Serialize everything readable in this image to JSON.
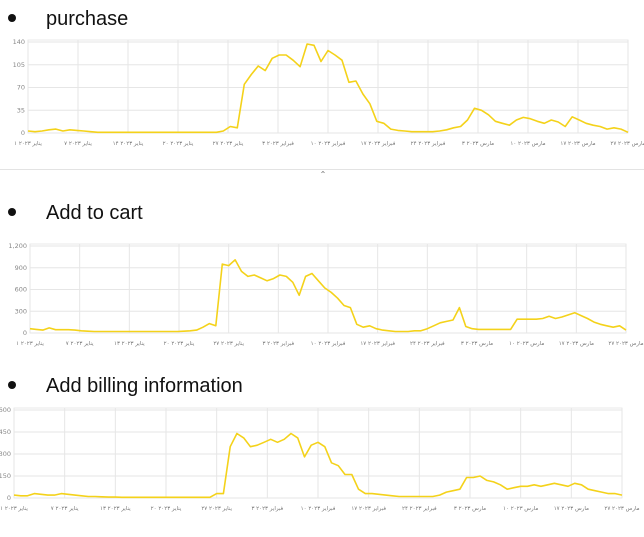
{
  "headings": {
    "purchase": "purchase",
    "add_to_cart": "Add to cart",
    "add_billing": "Add billing information"
  },
  "icons": {
    "bullet": "bullet-dot",
    "collapse": "chevron-up-icon"
  },
  "colors": {
    "line": "#f4d21a",
    "grid": "#e6e6e6"
  },
  "chart_data": [
    {
      "type": "line",
      "title": "purchase",
      "xlabel": "",
      "ylabel": "",
      "ylim": [
        0,
        140
      ],
      "yticks": [
        "0",
        "35",
        "70",
        "105",
        "140"
      ],
      "ytick_values": [
        0,
        35,
        70,
        105,
        140
      ],
      "grid": true,
      "x_tick_labels": [
        "۱ ینایر ۲۰۲۳",
        "۷ ینایر ۲۰۲۳",
        "۱۴ ینایر ۲۰۲۳",
        "۲۰ ینایر ۲۰۲۳",
        "۲۷ ینایر ۲۰۲۳",
        "۳ فبرایر ۲۰۲۳",
        "۱۰ فبرایر ۲۰۲۳",
        "۱۷ فبرایر ۲۰۲۳",
        "۲۴ فبرایر ۲۰۲۳",
        "۳ مارس ۲۰۲۳",
        "۱۰ مارس ۲۰۲۳",
        "۱۷ مارس ۲۰۲۳",
        "۲۷ مارس ۲۰۲۳"
      ],
      "series": [
        {
          "values": [
            3,
            2,
            3,
            5,
            6,
            3,
            5,
            4,
            3,
            2,
            1,
            1,
            1,
            1,
            1,
            1,
            1,
            1,
            1,
            1,
            1,
            1,
            1,
            1,
            1,
            1,
            1,
            1,
            3,
            10,
            8,
            75,
            90,
            103,
            96,
            115,
            120,
            120,
            112,
            102,
            137,
            135,
            110,
            127,
            120,
            112,
            78,
            80,
            60,
            45,
            18,
            15,
            6,
            4,
            3,
            2,
            2,
            2,
            2,
            3,
            5,
            8,
            10,
            20,
            38,
            35,
            28,
            18,
            15,
            12,
            20,
            24,
            22,
            18,
            15,
            20,
            17,
            10,
            25,
            20,
            15,
            12,
            10,
            6,
            8,
            6,
            1
          ]
        }
      ]
    },
    {
      "type": "line",
      "title": "Add to cart",
      "xlabel": "",
      "ylabel": "",
      "ylim": [
        0,
        1200
      ],
      "yticks": [
        "0",
        "300",
        "600",
        "900",
        "1,200"
      ],
      "ytick_values": [
        0,
        300,
        600,
        900,
        1200
      ],
      "grid": true,
      "x_tick_labels": [
        "۱ ینایر ۲۰۲۳",
        "۷ ینایر ۲۰۲۳",
        "۱۳ ینایر ۲۰۲۳",
        "۲۰ ینایر ۲۰۲۳",
        "۲۷ ینایر ۲۰۲۳",
        "۳ فبرایر ۲۰۲۳",
        "۱۰ فبرایر ۲۰۲۳",
        "۱۷ فبرایر ۲۰۲۳",
        "۲۴ فبرایر ۲۰۲۳",
        "۳ مارس ۲۰۲۳",
        "۱۰ مارس ۲۰۲۳",
        "۱۷ مارس ۲۰۲۳",
        "۲۷ مارس ۲۰۲۳"
      ],
      "series": [
        {
          "values": [
            60,
            50,
            40,
            70,
            45,
            45,
            45,
            40,
            30,
            25,
            20,
            20,
            20,
            20,
            20,
            20,
            20,
            20,
            20,
            20,
            20,
            20,
            20,
            20,
            25,
            30,
            40,
            80,
            130,
            100,
            950,
            930,
            1010,
            850,
            780,
            800,
            760,
            720,
            750,
            800,
            780,
            700,
            520,
            780,
            820,
            720,
            620,
            560,
            480,
            380,
            350,
            120,
            80,
            100,
            60,
            40,
            30,
            20,
            20,
            20,
            30,
            30,
            60,
            100,
            140,
            160,
            180,
            350,
            90,
            60,
            50,
            50,
            50,
            50,
            50,
            50,
            190,
            190,
            190,
            190,
            200,
            230,
            200,
            220,
            250,
            280,
            240,
            200,
            150,
            120,
            100,
            80,
            100,
            40
          ]
        }
      ]
    },
    {
      "type": "line",
      "title": "Add billing information",
      "xlabel": "",
      "ylabel": "",
      "ylim": [
        0,
        600
      ],
      "yticks": [
        "0",
        "150",
        "300",
        "450",
        "600"
      ],
      "ytick_values": [
        0,
        150,
        300,
        450,
        600
      ],
      "grid": true,
      "x_tick_labels": [
        "۱ ینایر ۲۰۲۳",
        "۷ ینایر ۲۰۲۳",
        "۱۳ ینایر ۲۰۲۳",
        "۲۰ ینایر ۲۰۲۳",
        "۲۷ ینایر ۲۰۲۳",
        "۳ فبرایر ۲۰۲۳",
        "۱۰ فبرایر ۲۰۲۳",
        "۱۷ فبرایر ۲۰۲۳",
        "۲۴ فبرایر ۲۰۲۳",
        "۳ مارس ۲۰۲۳",
        "۱۰ مارس ۲۰۲۳",
        "۱۷ مارس ۲۰۲۳",
        "۲۷ مارس ۲۰۲۳"
      ],
      "series": [
        {
          "values": [
            20,
            15,
            15,
            30,
            25,
            20,
            20,
            30,
            25,
            20,
            15,
            10,
            10,
            8,
            6,
            6,
            5,
            5,
            5,
            5,
            5,
            5,
            5,
            5,
            5,
            5,
            5,
            5,
            5,
            5,
            30,
            30,
            350,
            440,
            410,
            350,
            360,
            380,
            400,
            380,
            400,
            440,
            410,
            280,
            360,
            380,
            350,
            240,
            220,
            160,
            160,
            60,
            30,
            30,
            25,
            20,
            15,
            10,
            10,
            10,
            10,
            10,
            10,
            20,
            40,
            50,
            60,
            140,
            140,
            150,
            120,
            110,
            90,
            60,
            70,
            80,
            80,
            90,
            80,
            90,
            100,
            90,
            80,
            100,
            90,
            60,
            50,
            40,
            30,
            30,
            20
          ]
        }
      ]
    }
  ]
}
